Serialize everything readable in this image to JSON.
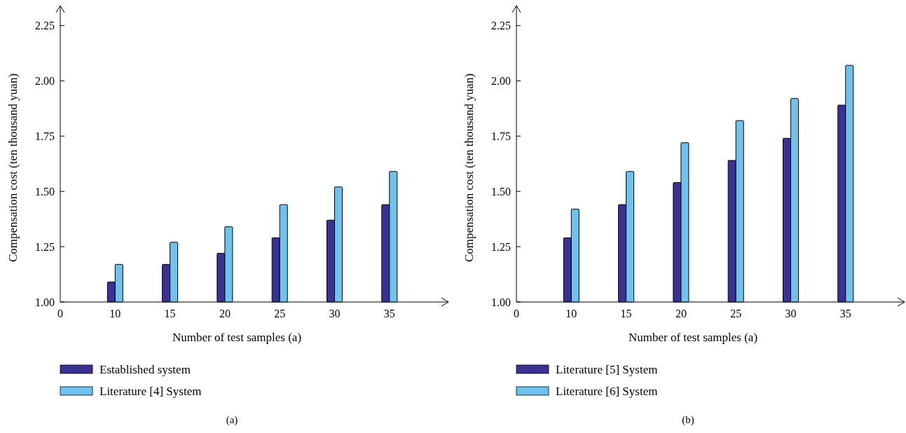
{
  "chart_data": [
    {
      "type": "bar",
      "xlabel": "Number of test samples (a)",
      "ylabel": "Compensation cost (ten thousand yuan)",
      "categories": [
        "0",
        "10",
        "15",
        "20",
        "25",
        "30",
        "35"
      ],
      "series": [
        {
          "name": "Established system",
          "color": "#3a3194",
          "values": [
            null,
            1.09,
            1.17,
            1.22,
            1.29,
            1.37,
            1.44
          ]
        },
        {
          "name": "Literature [4] System",
          "color": "#6ec3ee",
          "values": [
            null,
            1.17,
            1.27,
            1.34,
            1.44,
            1.52,
            1.59
          ]
        }
      ],
      "ylim": [
        1,
        2.34
      ],
      "yticks": [
        {
          "value": 1,
          "label": "1.00"
        },
        {
          "value": 1.25,
          "label": "1.25"
        },
        {
          "value": 1.5,
          "label": "1.50"
        },
        {
          "value": 1.75,
          "label": "1.75"
        },
        {
          "value": 2,
          "label": "2.00"
        },
        {
          "value": 2.25,
          "label": "2.25"
        }
      ],
      "legend": "bottom",
      "annotations": [
        "(a)"
      ]
    },
    {
      "type": "bar",
      "xlabel": "Number of test samples (a)",
      "ylabel": "Compensation cost (ten thousand yuan)",
      "categories": [
        "0",
        "10",
        "15",
        "20",
        "25",
        "30",
        "35"
      ],
      "series": [
        {
          "name": "Literature [5] System",
          "color": "#3a3194",
          "values": [
            null,
            1.29,
            1.44,
            1.54,
            1.64,
            1.74,
            1.89
          ]
        },
        {
          "name": "Literature [6] System",
          "color": "#6ec3ee",
          "values": [
            null,
            1.42,
            1.59,
            1.72,
            1.82,
            1.92,
            2.07
          ]
        }
      ],
      "ylim": [
        1,
        2.34
      ],
      "yticks": [
        {
          "value": 1,
          "label": "1.00"
        },
        {
          "value": 1.25,
          "label": "1.25"
        },
        {
          "value": 1.5,
          "label": "1.50"
        },
        {
          "value": 1.75,
          "label": "1.75"
        },
        {
          "value": 2,
          "label": "2.00"
        },
        {
          "value": 2.25,
          "label": "2.25"
        }
      ],
      "legend": "bottom",
      "annotations": [
        "(b)"
      ]
    }
  ]
}
